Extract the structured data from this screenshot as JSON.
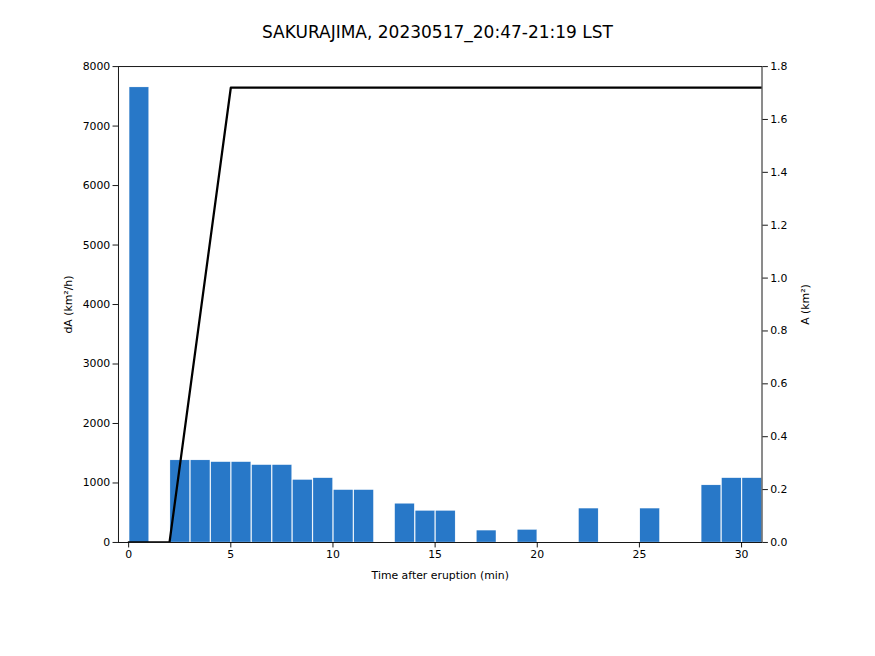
{
  "chart_data": {
    "type": "bar",
    "title": "SAKURAJIMA, 20230517_20:47-21:19 LST",
    "xlabel": "Time after eruption (min)",
    "ylabel": "dA (km²/h)",
    "y2label": "A (km²)",
    "series": [
      {
        "type": "bar",
        "color": "#2878C8",
        "x": [
          0,
          1,
          2,
          3,
          4,
          5,
          6,
          7,
          8,
          9,
          10,
          11,
          12,
          13,
          14,
          15,
          16,
          17,
          18,
          19,
          20,
          21,
          22,
          23,
          24,
          25,
          26,
          27,
          28,
          29,
          30
        ],
        "values": [
          7650,
          0,
          1380,
          1380,
          1350,
          1350,
          1300,
          1300,
          1050,
          1080,
          880,
          880,
          0,
          650,
          530,
          530,
          0,
          200,
          0,
          210,
          0,
          0,
          570,
          0,
          0,
          570,
          0,
          0,
          960,
          1080,
          1080
        ]
      },
      {
        "type": "line",
        "color": "#000000",
        "axis": "y2",
        "x": [
          0,
          2,
          5,
          31
        ],
        "values": [
          0.0,
          0.0,
          1.72,
          1.72
        ]
      }
    ],
    "xlim": [
      -0.5,
      31
    ],
    "xticks": [
      0,
      5,
      10,
      15,
      20,
      25,
      30
    ],
    "ylim": [
      0,
      8000
    ],
    "yticks": [
      0,
      1000,
      2000,
      3000,
      4000,
      5000,
      6000,
      7000,
      8000
    ],
    "y2lim": [
      0,
      1.8
    ],
    "y2ticks": [
      {
        "value": 0,
        "label": "0.0"
      },
      0.2,
      0.4,
      0.6,
      0.8,
      {
        "value": 1,
        "label": "1.0"
      },
      1.2,
      1.4,
      1.6,
      1.8
    ],
    "grid": false
  }
}
